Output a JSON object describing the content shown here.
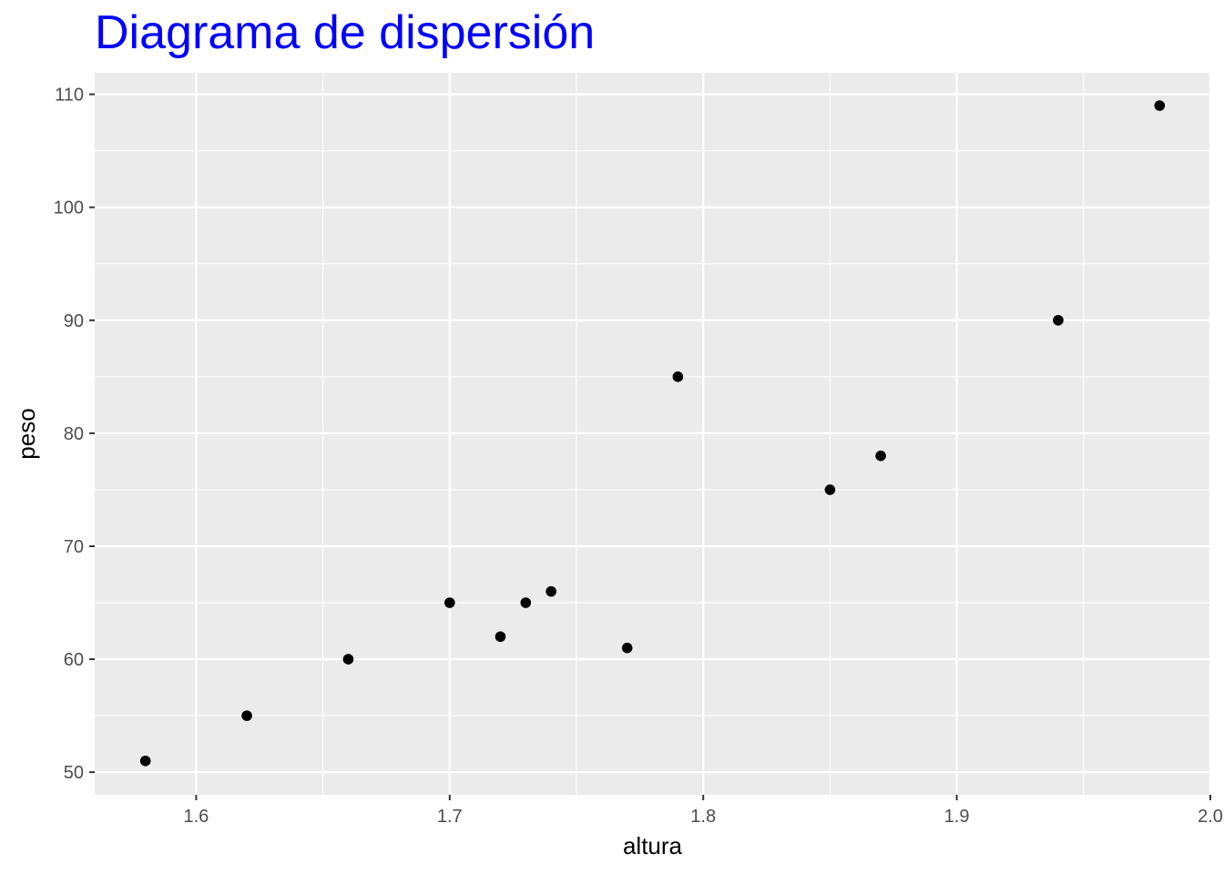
{
  "chart_data": {
    "type": "scatter",
    "title": "Diagrama de dispersión",
    "xlabel": "altura",
    "ylabel": "peso",
    "xlim": [
      1.56,
      2.0
    ],
    "ylim": [
      48,
      111.9
    ],
    "x_ticks": [
      1.6,
      1.7,
      1.8,
      1.9,
      2.0
    ],
    "x_tick_labels": [
      "1.6",
      "1.7",
      "1.8",
      "1.9",
      "2.0"
    ],
    "y_ticks": [
      50,
      60,
      70,
      80,
      90,
      100,
      110
    ],
    "y_tick_labels": [
      "50",
      "60",
      "70",
      "80",
      "90",
      "100",
      "110"
    ],
    "grid": true,
    "legend": "none",
    "colors": {
      "panel": "#ebebeb",
      "grid": "#ffffff",
      "points": "#000000",
      "title": "#0000ff"
    },
    "series": [
      {
        "points": [
          {
            "x": 1.58,
            "y": 51
          },
          {
            "x": 1.62,
            "y": 55
          },
          {
            "x": 1.66,
            "y": 60
          },
          {
            "x": 1.7,
            "y": 65
          },
          {
            "x": 1.72,
            "y": 62
          },
          {
            "x": 1.73,
            "y": 65
          },
          {
            "x": 1.74,
            "y": 66
          },
          {
            "x": 1.77,
            "y": 61
          },
          {
            "x": 1.79,
            "y": 85
          },
          {
            "x": 1.85,
            "y": 75
          },
          {
            "x": 1.87,
            "y": 78
          },
          {
            "x": 1.94,
            "y": 90
          },
          {
            "x": 1.98,
            "y": 109
          }
        ]
      }
    ]
  }
}
